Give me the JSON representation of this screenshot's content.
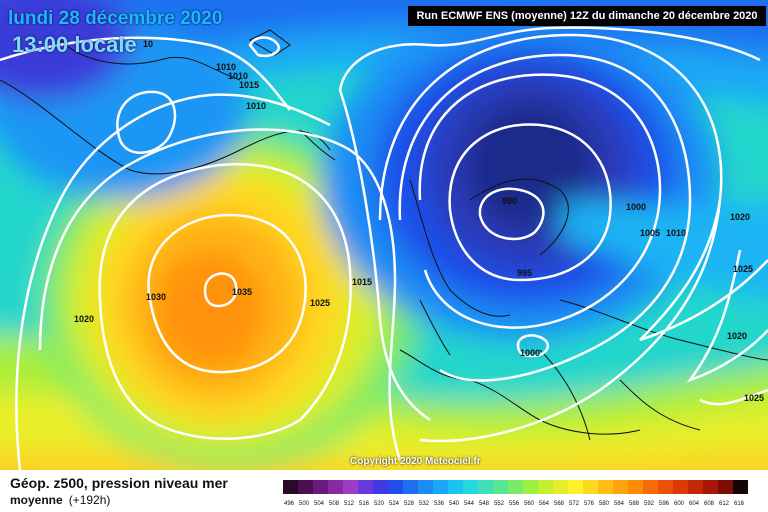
{
  "header": {
    "date": "lundi 28 décembre 2020",
    "time": "13:00 locale",
    "run": "Run ECMWF ENS (moyenne) 12Z du dimanche 20 décembre 2020"
  },
  "copyright": "Copyright 2020 Meteociel.fr",
  "footer": {
    "title": "Géop. z500, pression niveau mer",
    "subtitle": "moyenne",
    "lead": "(+192h)"
  },
  "scale": {
    "labels": [
      "496",
      "500",
      "504",
      "508",
      "512",
      "516",
      "520",
      "524",
      "528",
      "532",
      "536",
      "540",
      "544",
      "548",
      "552",
      "556",
      "560",
      "564",
      "568",
      "572",
      "576",
      "580",
      "584",
      "588",
      "592",
      "596",
      "600",
      "604",
      "608",
      "612",
      "616"
    ],
    "colors": [
      "#2a0a2a",
      "#4a1050",
      "#6a1a7a",
      "#8a2aa2",
      "#9d3cc6",
      "#6a3ad8",
      "#3f3ae2",
      "#1f4fe8",
      "#1e6ff0",
      "#1a8cf5",
      "#19a8f7",
      "#1ac4f2",
      "#24d8e0",
      "#3ee0bb",
      "#5ae690",
      "#7aeb66",
      "#9ef040",
      "#c4f030",
      "#e6ee2a",
      "#fff02a",
      "#ffd820",
      "#ffbe14",
      "#ffa40c",
      "#ff8a06",
      "#f76a04",
      "#ec5004",
      "#dc3a04",
      "#c42804",
      "#a61804",
      "#800c04",
      "#140604"
    ]
  },
  "isobars": [
    {
      "id": "1010-a",
      "label": "1010"
    },
    {
      "id": "1010-b",
      "label": "1010"
    },
    {
      "id": "1015-a",
      "label": "1015"
    },
    {
      "id": "1010-c",
      "label": "1010"
    },
    {
      "id": "10-edge",
      "label": "10"
    },
    {
      "id": "1035",
      "label": "1035"
    },
    {
      "id": "1030",
      "label": "1030"
    },
    {
      "id": "1025-a",
      "label": "1025"
    },
    {
      "id": "1020-a",
      "label": "1020"
    },
    {
      "id": "1015-b",
      "label": "1015"
    },
    {
      "id": "990",
      "label": "990"
    },
    {
      "id": "995",
      "label": "995"
    },
    {
      "id": "1000-a",
      "label": "1000"
    },
    {
      "id": "1005",
      "label": "1005"
    },
    {
      "id": "1010-d",
      "label": "1010"
    },
    {
      "id": "1020-b",
      "label": "1020"
    },
    {
      "id": "1025-b",
      "label": "1025"
    },
    {
      "id": "1020-c",
      "label": "1020"
    },
    {
      "id": "1000-b",
      "label": "1000"
    },
    {
      "id": "1025-c",
      "label": "1025"
    }
  ]
}
